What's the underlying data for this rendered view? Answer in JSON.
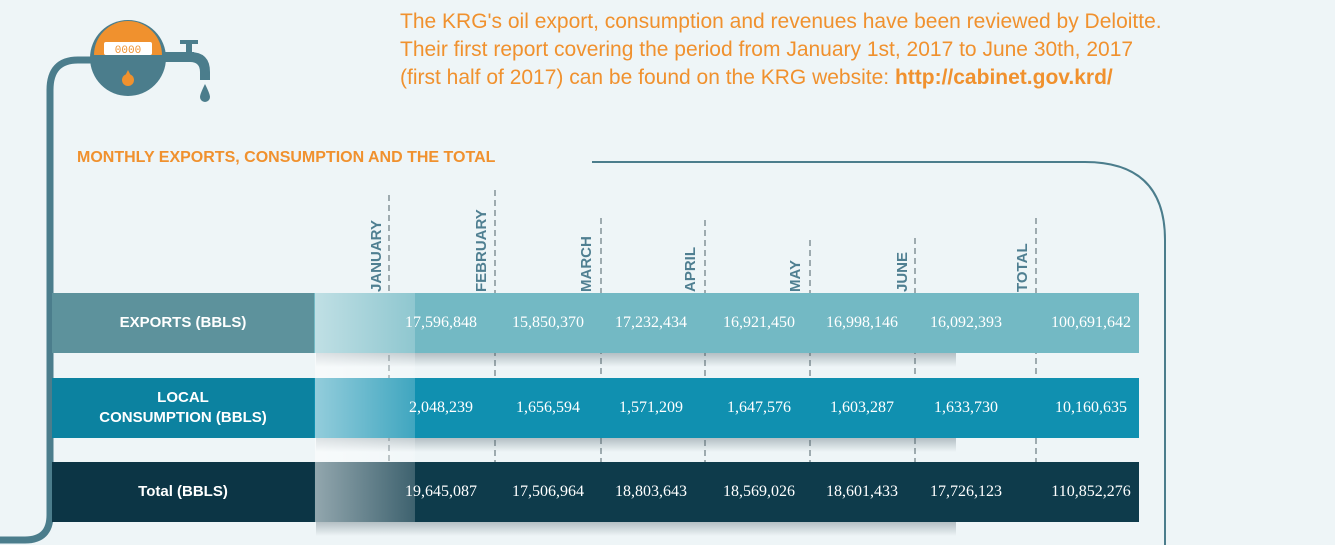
{
  "intro": {
    "line1": "The KRG's oil export, consumption and revenues have been reviewed by Deloitte.",
    "line2": "Their first report covering the period from January 1st, 2017 to June 30th, 2017",
    "line3_text": "(first half of 2017) can be found on the KRG website: ",
    "line3_link": "http://cabinet.gov.krd/"
  },
  "meter": {
    "digits": "0000"
  },
  "section_title": "MONTHLY EXPORTS, CONSUMPTION AND THE TOTAL",
  "columns": [
    "JANUARY",
    "FEBRUARY",
    "MARCH",
    "APRIL",
    "MAY",
    "JUNE",
    "TOTAL"
  ],
  "rows": [
    {
      "label": "EXPORTS  (BBLS)",
      "values": [
        "17,596,848",
        "15,850,370",
        "17,232,434",
        "16,921,450",
        "16,998,146",
        "16,092,393",
        "100,691,642"
      ]
    },
    {
      "label_line1": "LOCAL",
      "label_line2": "CONSUMPTION (BBLS)",
      "values": [
        "2,048,239",
        "1,656,594",
        "1,571,209",
        "1,647,576",
        "1,603,287",
        "1,633,730",
        "10,160,635"
      ]
    },
    {
      "label": "Total (BBLS)",
      "values": [
        "19,645,087",
        "17,506,964",
        "18,803,643",
        "18,569,026",
        "18,601,433",
        "17,726,123",
        "110,852,276"
      ]
    }
  ],
  "colors": {
    "accent": "#f0912e",
    "pipe": "#4b7d8c",
    "exports_row": "#73b9c4",
    "local_row": "#1090b0",
    "total_row": "#0e3b4b"
  }
}
